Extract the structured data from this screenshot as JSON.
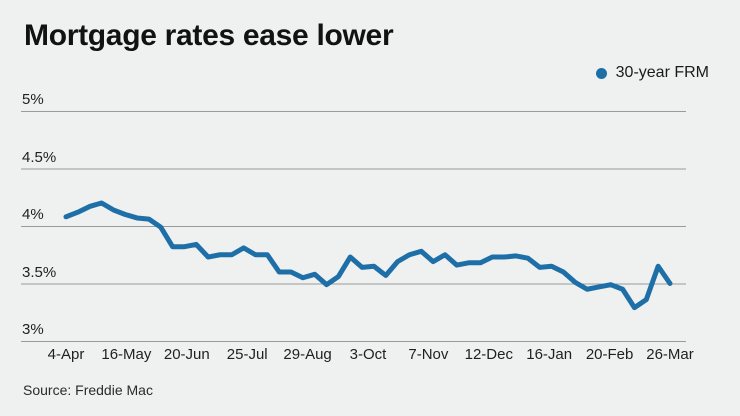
{
  "page": {
    "background_color": "#eff1f0"
  },
  "header": {
    "title": "Mortgage rates ease lower"
  },
  "legend": {
    "label": "30-year FRM",
    "marker_color": "#1e6fa8"
  },
  "source": {
    "text": "Source: Freddie Mac"
  },
  "chart_data": {
    "type": "line",
    "title": "Mortgage rates ease lower",
    "grid": "horizontal",
    "legend_position": "top-right",
    "line_color": "#1e6fa8",
    "gridline_color": "#979b99",
    "ylim": [
      3,
      5.25
    ],
    "y_ticks": [
      5,
      4.5,
      4,
      3.5,
      3
    ],
    "y_tick_labels": [
      "5%",
      "4.5%",
      "4%",
      "3.5%",
      "3%"
    ],
    "x_tick_labels": [
      "4-Apr",
      "16-May",
      "20-Jun",
      "25-Jul",
      "29-Aug",
      "3-Oct",
      "7-Nov",
      "12-Dec",
      "16-Jan",
      "20-Feb",
      "26-Mar"
    ],
    "x": [
      "4-Apr",
      "11-Apr",
      "18-Apr",
      "25-Apr",
      "2-May",
      "9-May",
      "16-May",
      "23-May",
      "30-May",
      "6-Jun",
      "13-Jun",
      "20-Jun",
      "27-Jun",
      "3-Jul",
      "11-Jul",
      "18-Jul",
      "25-Jul",
      "1-Aug",
      "8-Aug",
      "15-Aug",
      "22-Aug",
      "29-Aug",
      "5-Sep",
      "12-Sep",
      "19-Sep",
      "26-Sep",
      "3-Oct",
      "10-Oct",
      "17-Oct",
      "24-Oct",
      "31-Oct",
      "7-Nov",
      "14-Nov",
      "21-Nov",
      "27-Nov",
      "5-Dec",
      "12-Dec",
      "19-Dec",
      "26-Dec",
      "2-Jan",
      "9-Jan",
      "16-Jan",
      "23-Jan",
      "30-Jan",
      "6-Feb",
      "13-Feb",
      "20-Feb",
      "27-Feb",
      "5-Mar",
      "12-Mar",
      "19-Mar",
      "26-Mar"
    ],
    "series": [
      {
        "name": "30-year FRM",
        "values": [
          4.08,
          4.12,
          4.17,
          4.2,
          4.14,
          4.1,
          4.07,
          4.06,
          3.99,
          3.82,
          3.82,
          3.84,
          3.73,
          3.75,
          3.75,
          3.81,
          3.75,
          3.75,
          3.6,
          3.6,
          3.55,
          3.58,
          3.49,
          3.56,
          3.73,
          3.64,
          3.65,
          3.57,
          3.69,
          3.75,
          3.78,
          3.69,
          3.75,
          3.66,
          3.68,
          3.68,
          3.73,
          3.73,
          3.74,
          3.72,
          3.64,
          3.65,
          3.6,
          3.51,
          3.45,
          3.47,
          3.49,
          3.45,
          3.29,
          3.36,
          3.65,
          3.5
        ]
      }
    ],
    "source": "Source: Freddie Mac"
  }
}
